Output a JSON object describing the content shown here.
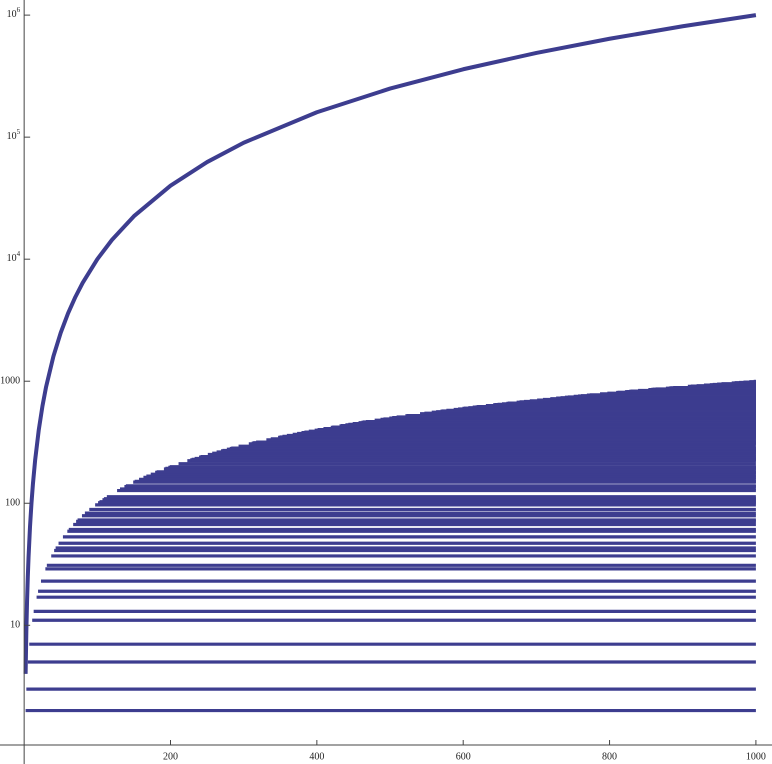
{
  "chart_data": {
    "type": "scatter",
    "ylog": true,
    "color": "#3d3d8f",
    "xlim": [
      -33,
      1022
    ],
    "ylim": [
      0.73,
      1330000
    ],
    "xticks": [
      200,
      400,
      600,
      800,
      1000
    ],
    "yticks": [
      10,
      100,
      1000,
      {
        "value": 10000,
        "label": "10",
        "superscript": "4"
      },
      {
        "value": 100000,
        "label": "10",
        "superscript": "5"
      },
      {
        "value": 1000000,
        "label": "10",
        "superscript": "6"
      }
    ],
    "series": [
      {
        "color": "#3d3d8f",
        "x": [
          2,
          3,
          4,
          5,
          6,
          8,
          10,
          12,
          15,
          20,
          25,
          30,
          40,
          50,
          60,
          70,
          80,
          100,
          120,
          150,
          200,
          250,
          300,
          400,
          500,
          600,
          700,
          800,
          900,
          1000
        ],
        "values": [
          4,
          9,
          16,
          25,
          36,
          64,
          100,
          144,
          225,
          400,
          625,
          900,
          1600,
          2500,
          3600,
          4900,
          6400,
          10000,
          14400,
          22500,
          40000,
          62500,
          90000,
          160000,
          250000,
          360000,
          490000,
          640000,
          810000,
          1000000
        ]
      }
    ],
    "segments": {
      "color": "#3d3d8f",
      "x_end": 1000,
      "x_start": [
        2,
        3,
        5,
        7,
        11,
        13,
        17,
        19,
        23,
        29,
        31,
        37,
        41,
        43,
        47,
        53,
        59,
        61,
        67,
        71,
        73,
        79,
        83,
        89,
        97,
        101,
        103,
        107,
        109,
        113,
        127,
        131,
        137,
        139,
        149,
        151,
        157,
        163,
        167,
        173,
        179,
        181,
        191,
        193,
        197,
        199,
        211,
        223,
        227,
        229,
        233,
        239,
        241,
        251,
        257,
        263,
        269,
        271,
        277,
        281,
        283,
        293,
        307,
        311,
        313,
        317,
        331,
        337,
        347,
        349,
        353,
        359,
        367,
        373,
        379,
        383,
        389,
        397,
        401,
        409,
        419,
        421,
        431,
        433,
        439,
        443,
        449,
        457,
        461,
        463,
        467,
        479,
        487,
        491,
        499,
        503,
        509,
        521,
        523,
        541,
        547,
        557,
        563,
        569,
        571,
        577,
        587,
        593,
        599,
        601,
        607,
        613,
        617,
        619,
        631,
        641,
        643,
        647,
        653,
        659,
        661,
        673,
        677,
        683,
        691,
        701,
        709,
        719,
        727,
        733,
        739,
        743,
        751,
        757,
        761,
        769,
        773,
        787,
        797,
        809,
        811,
        821,
        823,
        827,
        829,
        839,
        853,
        857,
        859,
        863,
        877,
        881,
        883,
        887,
        907,
        911,
        919,
        929,
        937,
        941,
        947,
        953,
        967,
        971,
        977,
        983,
        991,
        997
      ],
      "values": [
        2,
        3,
        5,
        7,
        11,
        13,
        17,
        19,
        23,
        29,
        31,
        37,
        41,
        43,
        47,
        53,
        59,
        61,
        67,
        71,
        73,
        79,
        83,
        89,
        97,
        101,
        103,
        107,
        109,
        113,
        127,
        131,
        137,
        139,
        149,
        151,
        157,
        163,
        167,
        173,
        179,
        181,
        191,
        193,
        197,
        199,
        211,
        223,
        227,
        229,
        233,
        239,
        241,
        251,
        257,
        263,
        269,
        271,
        277,
        281,
        283,
        293,
        307,
        311,
        313,
        317,
        331,
        337,
        347,
        349,
        353,
        359,
        367,
        373,
        379,
        383,
        389,
        397,
        401,
        409,
        419,
        421,
        431,
        433,
        439,
        443,
        449,
        457,
        461,
        463,
        467,
        479,
        487,
        491,
        499,
        503,
        509,
        521,
        523,
        541,
        547,
        557,
        563,
        569,
        571,
        577,
        587,
        593,
        599,
        601,
        607,
        613,
        617,
        619,
        631,
        641,
        643,
        647,
        653,
        659,
        661,
        673,
        677,
        683,
        691,
        701,
        709,
        719,
        727,
        733,
        739,
        743,
        751,
        757,
        761,
        769,
        773,
        787,
        797,
        809,
        811,
        821,
        823,
        827,
        829,
        839,
        853,
        857,
        859,
        863,
        877,
        881,
        883,
        887,
        907,
        911,
        919,
        929,
        937,
        941,
        947,
        953,
        967,
        971,
        977,
        983,
        991,
        997
      ]
    }
  }
}
